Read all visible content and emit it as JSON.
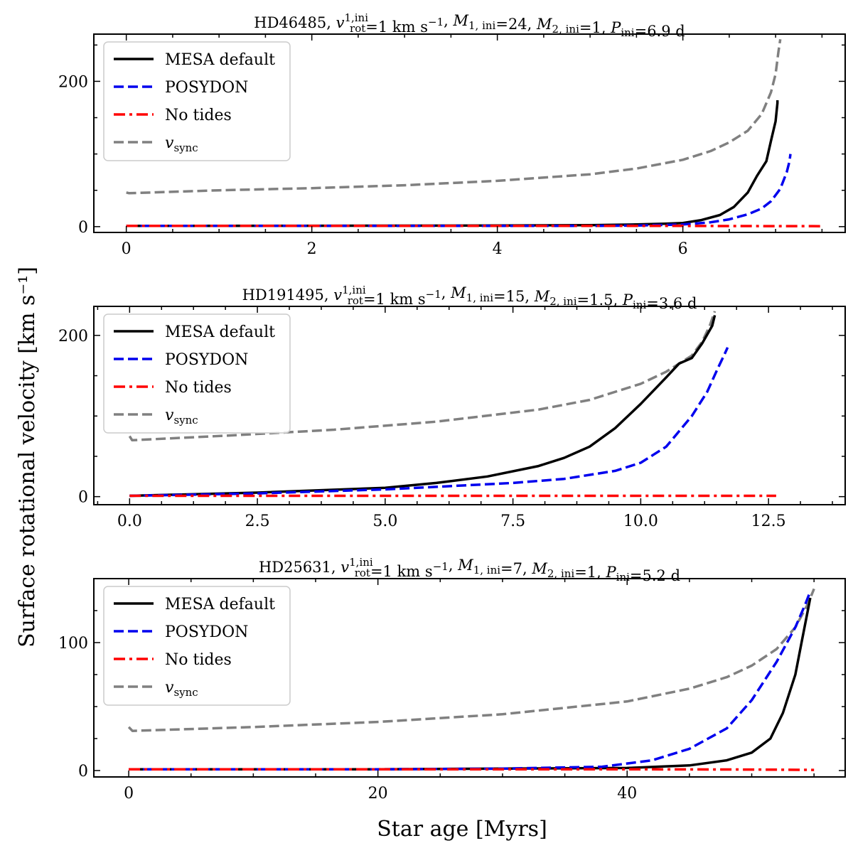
{
  "figure": {
    "ylabel": "Surface rotational velocity [km s⁻¹]",
    "xlabel": "Star age [Myrs]"
  },
  "chart_data": [
    {
      "type": "line",
      "title": "HD46485, v_rot^{1,ini}=1 km s⁻¹, M_{1,ini}=24, M_{2,ini}=1, P_ini=6.9 d",
      "title_parts": {
        "star": "HD46485",
        "vrot": "1",
        "m1": "24",
        "m2": "1",
        "p": "6.9"
      },
      "xlim": [
        -0.35,
        7.75
      ],
      "ylim": [
        -8,
        265
      ],
      "xticks": [
        0,
        2,
        4,
        6
      ],
      "xtick_labels": [
        "0",
        "2",
        "4",
        "6"
      ],
      "yticks": [
        0,
        200
      ],
      "ytick_labels": [
        "0",
        "200"
      ],
      "legend": [
        "MESA default",
        "POSYDON",
        "No tides",
        "v_sync"
      ],
      "legend_placement": "upper left",
      "series": [
        {
          "name": "v_sync",
          "style": "sync",
          "color": "#808080",
          "points": [
            [
              0,
              47
            ],
            [
              0.03,
              46
            ],
            [
              1,
              50
            ],
            [
              2,
              53
            ],
            [
              3,
              57
            ],
            [
              4,
              63
            ],
            [
              5,
              72
            ],
            [
              5.5,
              80
            ],
            [
              6,
              92
            ],
            [
              6.3,
              104
            ],
            [
              6.5,
              116
            ],
            [
              6.7,
              132
            ],
            [
              6.85,
              155
            ],
            [
              6.95,
              185
            ],
            [
              7.0,
              210
            ],
            [
              7.03,
              240
            ],
            [
              7.05,
              258
            ]
          ]
        },
        {
          "name": "MESA default",
          "style": "mesa",
          "color": "#000000",
          "points": [
            [
              0,
              1
            ],
            [
              2,
              1.2
            ],
            [
              4,
              1.5
            ],
            [
              5,
              2
            ],
            [
              5.5,
              3
            ],
            [
              5.8,
              4
            ],
            [
              6.0,
              5
            ],
            [
              6.2,
              9
            ],
            [
              6.4,
              16
            ],
            [
              6.55,
              27
            ],
            [
              6.7,
              47
            ],
            [
              6.8,
              70
            ],
            [
              6.9,
              90
            ],
            [
              6.95,
              118
            ],
            [
              7.0,
              145
            ],
            [
              7.02,
              170
            ],
            [
              7.02,
              174
            ]
          ]
        },
        {
          "name": "POSYDON",
          "style": "posydon",
          "color": "#0000ee",
          "points": [
            [
              0,
              1
            ],
            [
              2,
              1
            ],
            [
              4,
              1
            ],
            [
              5,
              1
            ],
            [
              5.5,
              1.5
            ],
            [
              6,
              3
            ],
            [
              6.3,
              6
            ],
            [
              6.5,
              10
            ],
            [
              6.7,
              17
            ],
            [
              6.85,
              25
            ],
            [
              6.95,
              35
            ],
            [
              7.05,
              52
            ],
            [
              7.12,
              75
            ],
            [
              7.15,
              90
            ],
            [
              7.16,
              100
            ]
          ]
        },
        {
          "name": "No tides",
          "style": "notides",
          "color": "#ff0000",
          "points": [
            [
              0,
              1
            ],
            [
              3,
              1
            ],
            [
              6,
              1
            ],
            [
              6.5,
              0.8
            ],
            [
              7.0,
              0.7
            ],
            [
              7.48,
              0.6
            ]
          ]
        }
      ]
    },
    {
      "type": "line",
      "title": "HD191495, v_rot^{1,ini}=1 km s⁻¹, M_{1,ini}=15, M_{2,ini}=1.5, P_ini=3.6 d",
      "title_parts": {
        "star": "HD191495",
        "vrot": "1",
        "m1": "15",
        "m2": "1.5",
        "p": "3.6"
      },
      "xlim": [
        -0.7,
        14.0
      ],
      "ylim": [
        -10,
        236
      ],
      "xticks": [
        0,
        2.5,
        5,
        7.5,
        10,
        12.5
      ],
      "xtick_labels": [
        "0.0",
        "2.5",
        "5.0",
        "7.5",
        "10.0",
        "12.5"
      ],
      "yticks": [
        0,
        200
      ],
      "ytick_labels": [
        "0",
        "200"
      ],
      "legend": [
        "MESA default",
        "POSYDON",
        "No tides",
        "v_sync"
      ],
      "legend_placement": "upper left",
      "series": [
        {
          "name": "v_sync",
          "style": "sync",
          "color": "#808080",
          "points": [
            [
              0,
              75
            ],
            [
              0.05,
              70
            ],
            [
              2,
              76
            ],
            [
              4,
              83
            ],
            [
              6,
              93
            ],
            [
              8,
              108
            ],
            [
              9,
              120
            ],
            [
              10,
              140
            ],
            [
              10.5,
              155
            ],
            [
              11,
              175
            ],
            [
              11.2,
              192
            ],
            [
              11.35,
              212
            ],
            [
              11.45,
              230
            ]
          ]
        },
        {
          "name": "MESA default",
          "style": "mesa",
          "color": "#000000",
          "points": [
            [
              0,
              1
            ],
            [
              2.5,
              5
            ],
            [
              5,
              11
            ],
            [
              6,
              17
            ],
            [
              7,
              25
            ],
            [
              8,
              38
            ],
            [
              8.5,
              48
            ],
            [
              9,
              62
            ],
            [
              9.5,
              85
            ],
            [
              10,
              115
            ],
            [
              10.5,
              148
            ],
            [
              10.75,
              165
            ],
            [
              11,
              172
            ],
            [
              11.2,
              190
            ],
            [
              11.4,
              212
            ],
            [
              11.45,
              225
            ]
          ]
        },
        {
          "name": "POSYDON",
          "style": "posydon",
          "color": "#0000ee",
          "points": [
            [
              0,
              1
            ],
            [
              2.5,
              4
            ],
            [
              5,
              9
            ],
            [
              7.5,
              17
            ],
            [
              8.5,
              22
            ],
            [
              9.5,
              32
            ],
            [
              10,
              42
            ],
            [
              10.5,
              62
            ],
            [
              11,
              100
            ],
            [
              11.3,
              130
            ],
            [
              11.5,
              158
            ],
            [
              11.65,
              178
            ],
            [
              11.7,
              185
            ]
          ]
        },
        {
          "name": "No tides",
          "style": "notides",
          "color": "#ff0000",
          "points": [
            [
              0,
              1
            ],
            [
              5,
              1
            ],
            [
              10,
              1
            ],
            [
              12.65,
              1
            ]
          ]
        }
      ]
    },
    {
      "type": "line",
      "title": "HD25631, v_rot^{1,ini}=1 km s⁻¹, M_{1,ini}=7, M_{2,ini}=1, P_ini=5.2 d",
      "title_parts": {
        "star": "HD25631",
        "vrot": "1",
        "m1": "7",
        "m2": "1",
        "p": "5.2"
      },
      "xlim": [
        -2.8,
        57.5
      ],
      "ylim": [
        -5,
        150
      ],
      "xticks": [
        0,
        20,
        40
      ],
      "xtick_labels": [
        "0",
        "20",
        "40"
      ],
      "yticks": [
        0,
        100
      ],
      "ytick_labels": [
        "0",
        "100"
      ],
      "legend": [
        "MESA default",
        "POSYDON",
        "No tides",
        "v_sync"
      ],
      "legend_placement": "upper left",
      "series": [
        {
          "name": "v_sync",
          "style": "sync",
          "color": "#808080",
          "points": [
            [
              0,
              34
            ],
            [
              0.3,
              31
            ],
            [
              10,
              34
            ],
            [
              20,
              38
            ],
            [
              30,
              44
            ],
            [
              40,
              54
            ],
            [
              45,
              64
            ],
            [
              48,
              73
            ],
            [
              50,
              82
            ],
            [
              52,
              95
            ],
            [
              53.5,
              112
            ],
            [
              54.5,
              130
            ],
            [
              55,
              142
            ]
          ]
        },
        {
          "name": "MESA default",
          "style": "mesa",
          "color": "#000000",
          "points": [
            [
              0,
              1
            ],
            [
              20,
              1
            ],
            [
              40,
              2
            ],
            [
              45,
              4
            ],
            [
              48,
              8
            ],
            [
              50,
              14
            ],
            [
              51.5,
              25
            ],
            [
              52.5,
              45
            ],
            [
              53.5,
              75
            ],
            [
              54,
              100
            ],
            [
              54.5,
              125
            ],
            [
              54.7,
              135
            ]
          ]
        },
        {
          "name": "POSYDON",
          "style": "posydon",
          "color": "#0000ee",
          "points": [
            [
              0,
              1
            ],
            [
              20,
              1
            ],
            [
              30,
              1.5
            ],
            [
              38,
              3
            ],
            [
              42,
              8
            ],
            [
              45,
              17
            ],
            [
              48,
              33
            ],
            [
              50,
              55
            ],
            [
              52,
              85
            ],
            [
              53.5,
              112
            ],
            [
              54.3,
              130
            ],
            [
              54.7,
              140
            ]
          ]
        },
        {
          "name": "No tides",
          "style": "notides",
          "color": "#ff0000",
          "points": [
            [
              0,
              1
            ],
            [
              20,
              1
            ],
            [
              40,
              1
            ],
            [
              50,
              0.8
            ],
            [
              55,
              0.5
            ]
          ]
        }
      ]
    }
  ]
}
